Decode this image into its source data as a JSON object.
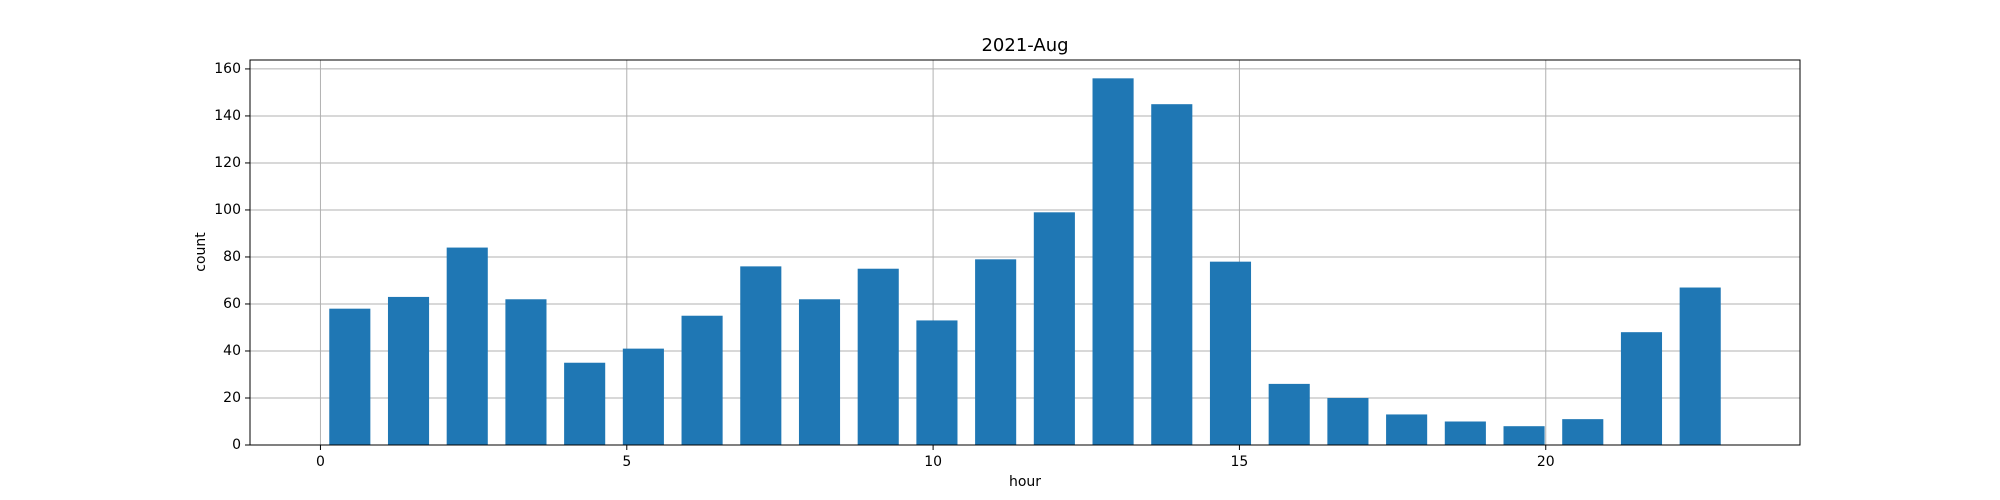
{
  "chart_data": {
    "type": "histogram",
    "title": "2021-Aug",
    "x_label": "hour",
    "y_label": "count",
    "bins": [
      0,
      0.9583,
      1.9167,
      2.875,
      3.8333,
      4.7917,
      5.75,
      6.7083,
      7.6667,
      8.625,
      9.5833,
      10.5417,
      11.5,
      12.4583,
      13.4167,
      14.375,
      15.3333,
      16.2917,
      17.25,
      18.2083,
      19.1667,
      20.125,
      21.0833,
      22.0417,
      23
    ],
    "values": [
      58,
      63,
      84,
      62,
      35,
      41,
      55,
      76,
      62,
      75,
      53,
      79,
      99,
      156,
      145,
      78,
      26,
      20,
      13,
      10,
      8,
      11,
      48,
      67
    ],
    "color": "#1f77b4",
    "rwidth": 0.7,
    "xlim": [
      -1.15,
      24.15
    ],
    "xticks": [
      0,
      5,
      10,
      15,
      20
    ],
    "ylim": [
      0,
      163.8
    ],
    "yticks": [
      0,
      20,
      40,
      60,
      80,
      100,
      120,
      140,
      160
    ],
    "grid": true
  }
}
